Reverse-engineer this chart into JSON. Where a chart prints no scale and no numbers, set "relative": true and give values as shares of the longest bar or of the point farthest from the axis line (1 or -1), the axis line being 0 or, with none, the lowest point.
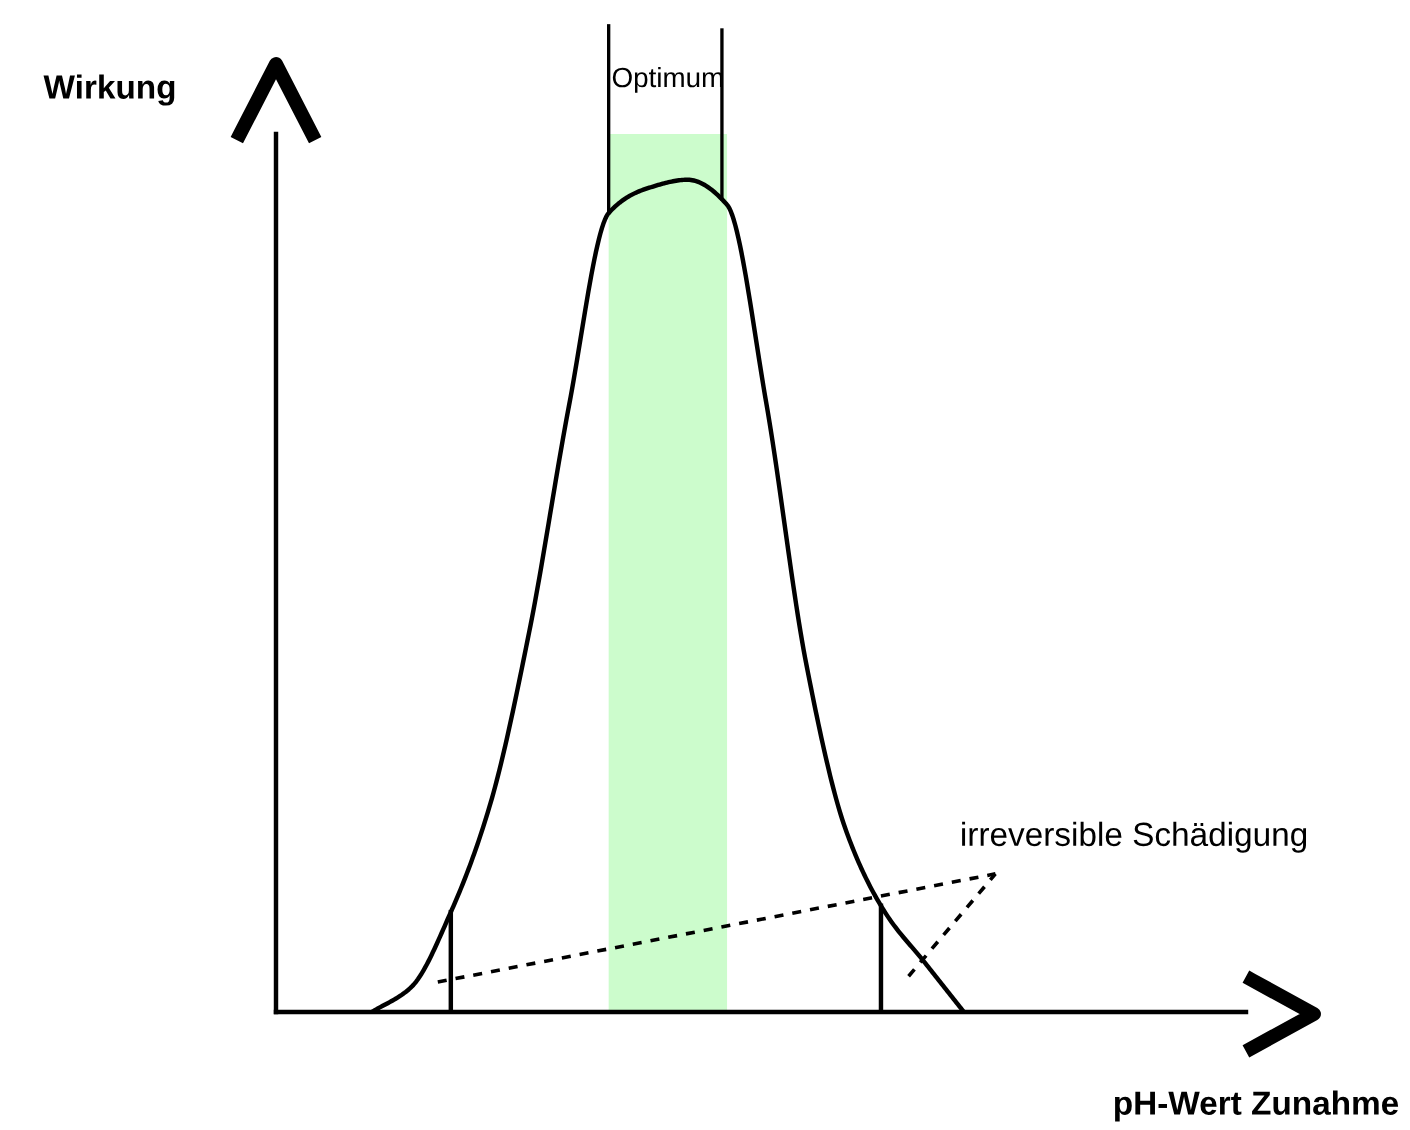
{
  "chart_data": {
    "type": "line",
    "relative": true,
    "xlabel": "pH-Wert Zunahme",
    "categories": [
      null,
      null,
      null,
      null,
      null,
      null,
      null,
      null,
      null,
      null,
      null,
      null,
      null,
      null,
      null,
      null
    ],
    "values": [
      0,
      0.03,
      0.12,
      0.25,
      0.46,
      0.73,
      0.96,
      0.99,
      1.0,
      0.97,
      0.73,
      0.42,
      0.22,
      0.12,
      0.06,
      0
    ],
    "color": "#000000",
    "annotations": [
      "Wirkung",
      "Optimum",
      "irreversible Schädigung"
    ]
  }
}
